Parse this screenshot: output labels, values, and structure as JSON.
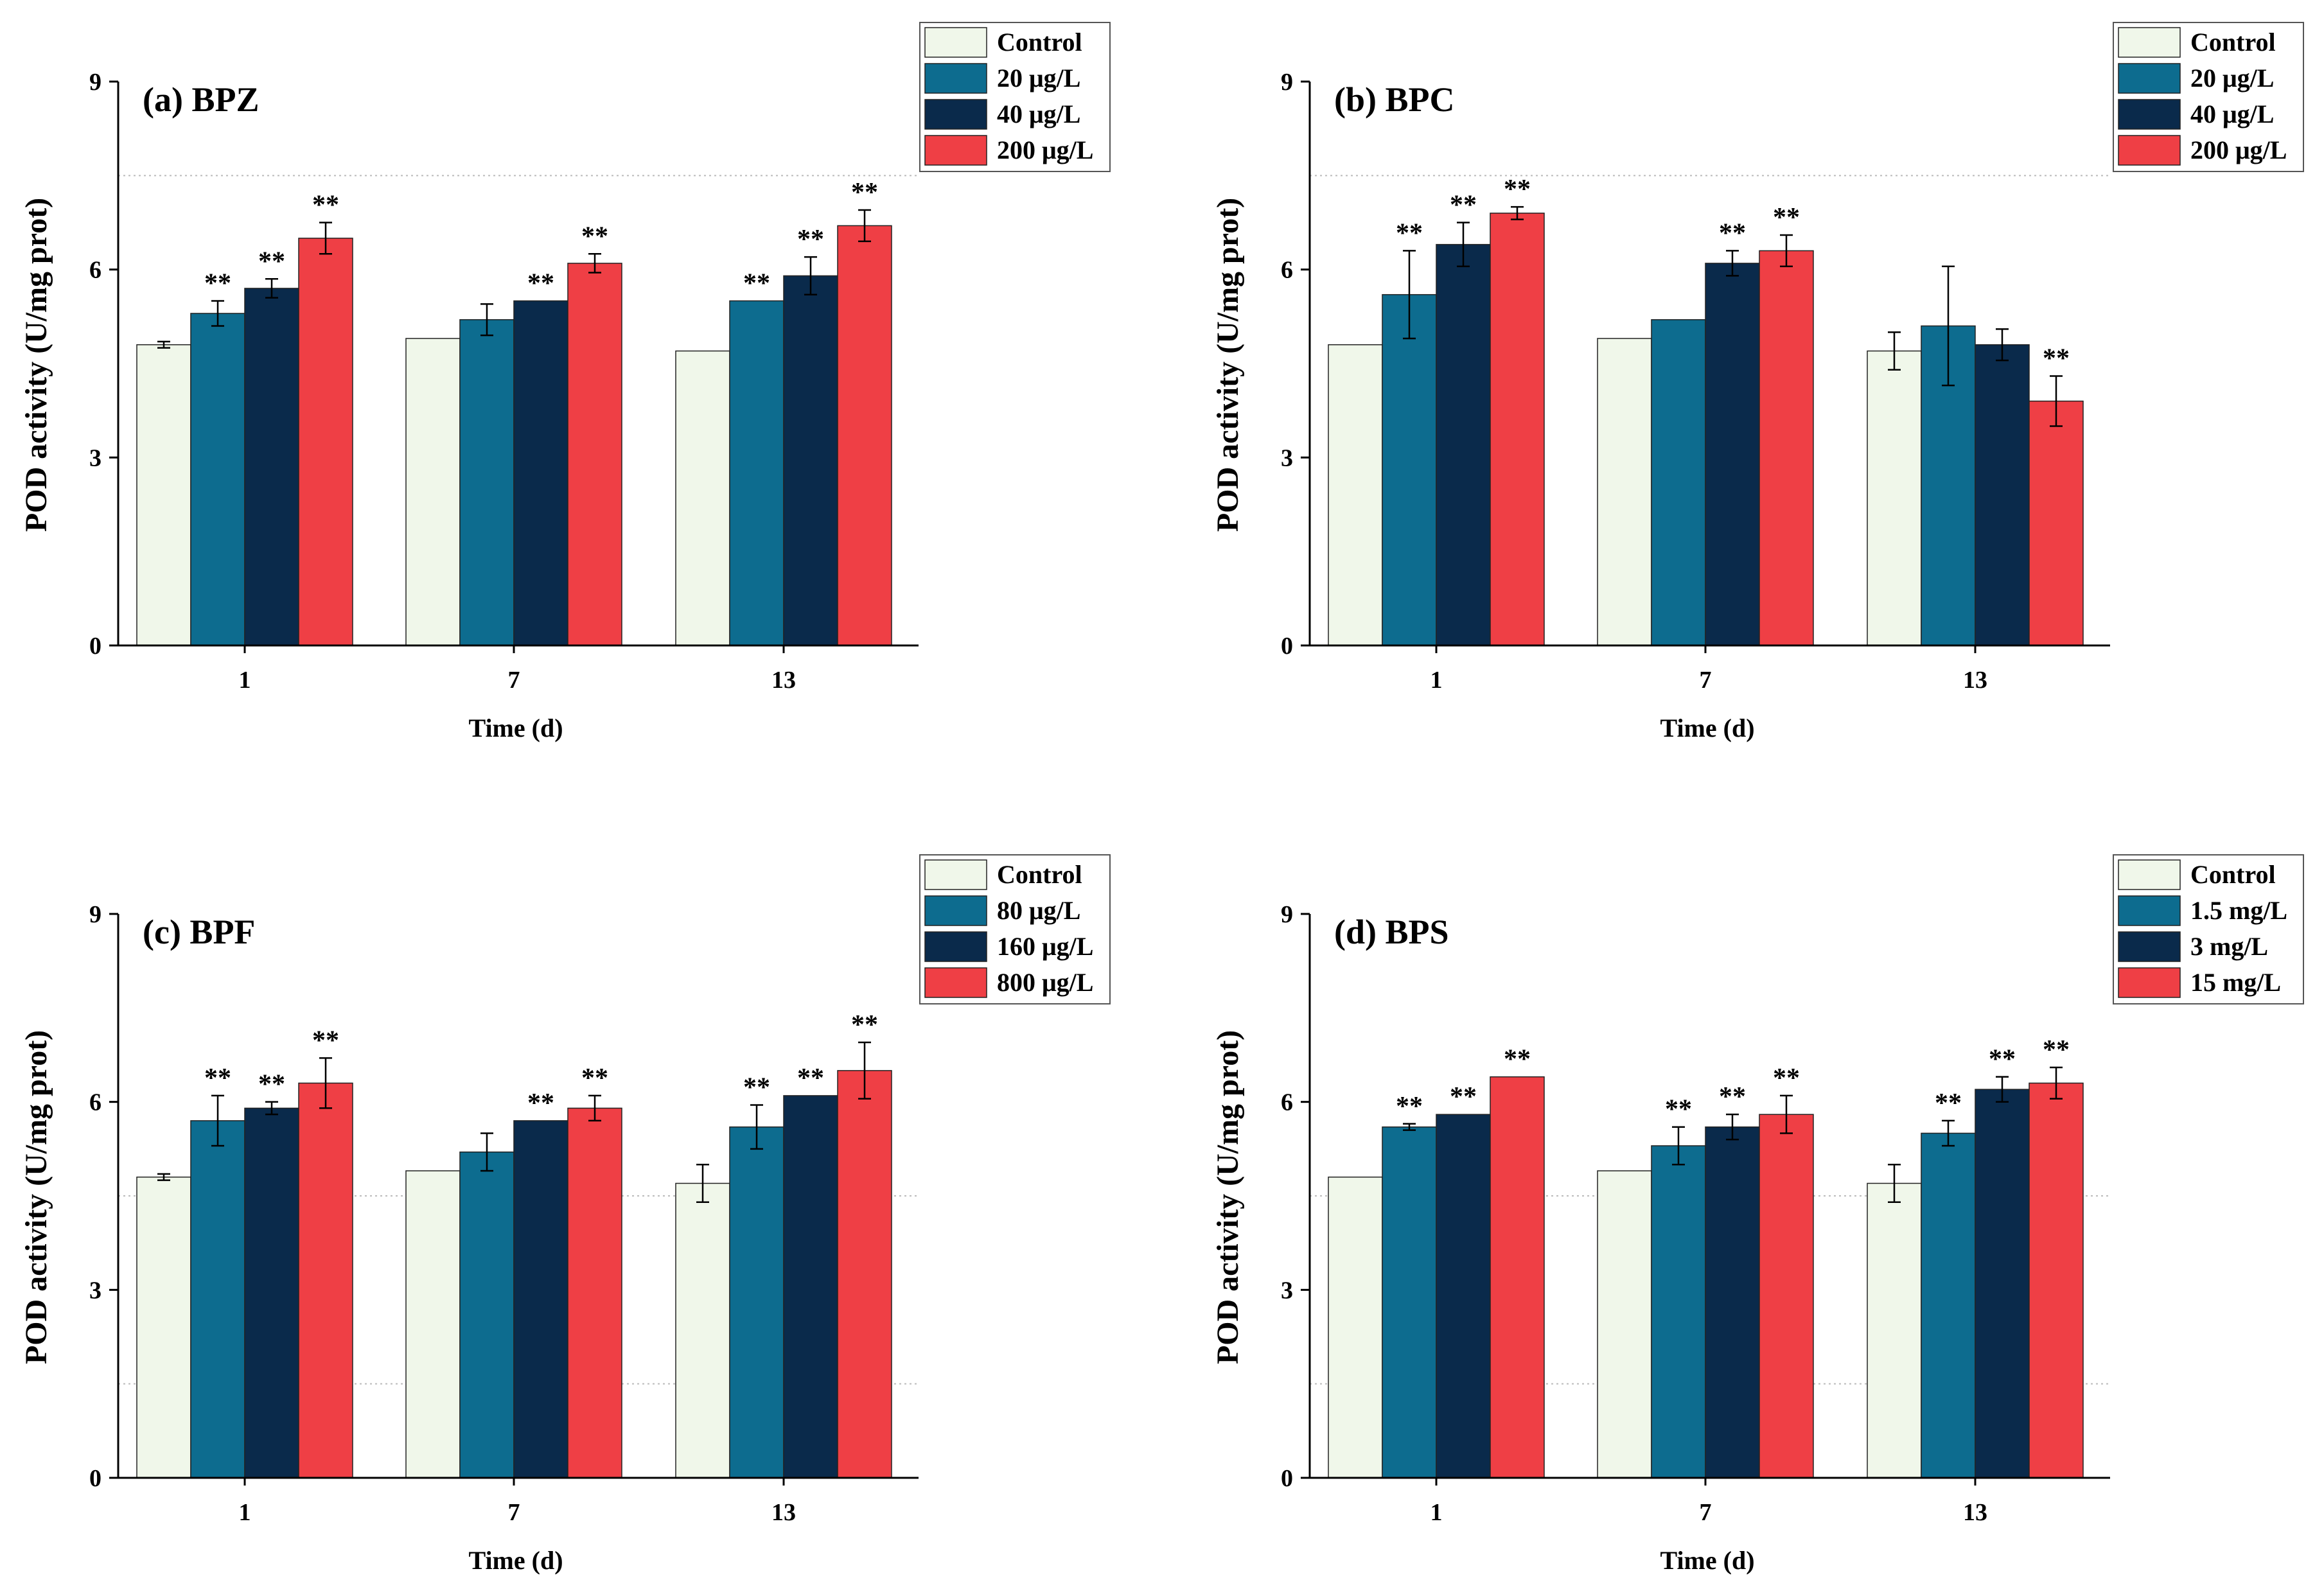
{
  "y_axis_label": "POD activity (U/mg prot)",
  "x_axis_label": "Time (d)",
  "colors": {
    "control": "#f0f7ea",
    "low": "#0d6c8f",
    "mid": "#0a2a4b",
    "high": "#ef3f45",
    "axis": "#000000",
    "grid": "#bbbbbb"
  },
  "chart_data": [
    {
      "type": "bar",
      "title": "(a) BPZ",
      "categories": [
        "1",
        "7",
        "13"
      ],
      "xlabel": "Time (d)",
      "ylabel": "POD activity (U/mg prot)",
      "ylim": [
        0,
        9
      ],
      "yticks": [
        "0",
        "3",
        "6",
        "9"
      ],
      "gridlines": [
        7.5
      ],
      "legend_position": "top-right",
      "series": [
        {
          "name": "Control",
          "color_key": "control",
          "values": [
            4.8,
            4.9,
            4.7
          ],
          "errors": [
            0.05,
            0.0,
            0.0
          ],
          "sig": [
            "",
            "",
            ""
          ]
        },
        {
          "name": "20 μg/L",
          "color_key": "low",
          "values": [
            5.3,
            5.2,
            5.5
          ],
          "errors": [
            0.2,
            0.25,
            0.0
          ],
          "sig": [
            "**",
            "",
            "**"
          ]
        },
        {
          "name": "40 μg/L",
          "color_key": "mid",
          "values": [
            5.7,
            5.5,
            5.9
          ],
          "errors": [
            0.15,
            0.0,
            0.3
          ],
          "sig": [
            "**",
            "**",
            "**"
          ]
        },
        {
          "name": "200 μg/L",
          "color_key": "high",
          "values": [
            6.5,
            6.1,
            6.7
          ],
          "errors": [
            0.25,
            0.15,
            0.25
          ],
          "sig": [
            "**",
            "**",
            "**"
          ]
        }
      ]
    },
    {
      "type": "bar",
      "title": "(b) BPC",
      "categories": [
        "1",
        "7",
        "13"
      ],
      "xlabel": "Time (d)",
      "ylabel": "POD activity (U/mg prot)",
      "ylim": [
        0,
        9
      ],
      "yticks": [
        "0",
        "3",
        "6",
        "9"
      ],
      "gridlines": [
        7.5
      ],
      "legend_position": "top-right",
      "series": [
        {
          "name": "Control",
          "color_key": "control",
          "values": [
            4.8,
            4.9,
            4.7
          ],
          "errors": [
            0.0,
            0.0,
            0.3
          ],
          "sig": [
            "",
            "",
            ""
          ]
        },
        {
          "name": "20 μg/L",
          "color_key": "low",
          "values": [
            5.6,
            5.2,
            5.1
          ],
          "errors": [
            0.7,
            0.0,
            0.95
          ],
          "sig": [
            "**",
            "",
            ""
          ]
        },
        {
          "name": "40 μg/L",
          "color_key": "mid",
          "values": [
            6.4,
            6.1,
            4.8
          ],
          "errors": [
            0.35,
            0.2,
            0.25
          ],
          "sig": [
            "**",
            "**",
            ""
          ]
        },
        {
          "name": "200 μg/L",
          "color_key": "high",
          "values": [
            6.9,
            6.3,
            3.9
          ],
          "errors": [
            0.1,
            0.25,
            0.4
          ],
          "sig": [
            "**",
            "**",
            "**"
          ]
        }
      ]
    },
    {
      "type": "bar",
      "title": "(c) BPF",
      "categories": [
        "1",
        "7",
        "13"
      ],
      "xlabel": "Time (d)",
      "ylabel": "POD activity (U/mg prot)",
      "ylim": [
        0,
        9
      ],
      "yticks": [
        "0",
        "3",
        "6",
        "9"
      ],
      "gridlines": [
        1.5,
        4.5
      ],
      "legend_position": "top-right",
      "series": [
        {
          "name": "Control",
          "color_key": "control",
          "values": [
            4.8,
            4.9,
            4.7
          ],
          "errors": [
            0.05,
            0.0,
            0.3
          ],
          "sig": [
            "",
            "",
            ""
          ]
        },
        {
          "name": "80 μg/L",
          "color_key": "low",
          "values": [
            5.7,
            5.2,
            5.6
          ],
          "errors": [
            0.4,
            0.3,
            0.35
          ],
          "sig": [
            "**",
            "",
            "**"
          ]
        },
        {
          "name": "160 μg/L",
          "color_key": "mid",
          "values": [
            5.9,
            5.7,
            6.1
          ],
          "errors": [
            0.1,
            0.0,
            0.0
          ],
          "sig": [
            "**",
            "**",
            "**"
          ]
        },
        {
          "name": "800 μg/L",
          "color_key": "high",
          "values": [
            6.3,
            5.9,
            6.5
          ],
          "errors": [
            0.4,
            0.2,
            0.45
          ],
          "sig": [
            "**",
            "**",
            "**"
          ]
        }
      ]
    },
    {
      "type": "bar",
      "title": "(d) BPS",
      "categories": [
        "1",
        "7",
        "13"
      ],
      "xlabel": "Time (d)",
      "ylabel": "POD activity (U/mg prot)",
      "ylim": [
        0,
        9
      ],
      "yticks": [
        "0",
        "3",
        "6",
        "9"
      ],
      "gridlines": [
        1.5,
        4.5
      ],
      "legend_position": "top-right",
      "series": [
        {
          "name": "Control",
          "color_key": "control",
          "values": [
            4.8,
            4.9,
            4.7
          ],
          "errors": [
            0.0,
            0.0,
            0.3
          ],
          "sig": [
            "",
            "",
            ""
          ]
        },
        {
          "name": "1.5 mg/L",
          "color_key": "low",
          "values": [
            5.6,
            5.3,
            5.5
          ],
          "errors": [
            0.05,
            0.3,
            0.2
          ],
          "sig": [
            "**",
            "**",
            "**"
          ]
        },
        {
          "name": "3 mg/L",
          "color_key": "mid",
          "values": [
            5.8,
            5.6,
            6.2
          ],
          "errors": [
            0.0,
            0.2,
            0.2
          ],
          "sig": [
            "**",
            "**",
            "**"
          ]
        },
        {
          "name": "15 mg/L",
          "color_key": "high",
          "values": [
            6.4,
            5.8,
            6.3
          ],
          "errors": [
            0.0,
            0.3,
            0.25
          ],
          "sig": [
            "**",
            "**",
            "**"
          ]
        }
      ]
    }
  ]
}
